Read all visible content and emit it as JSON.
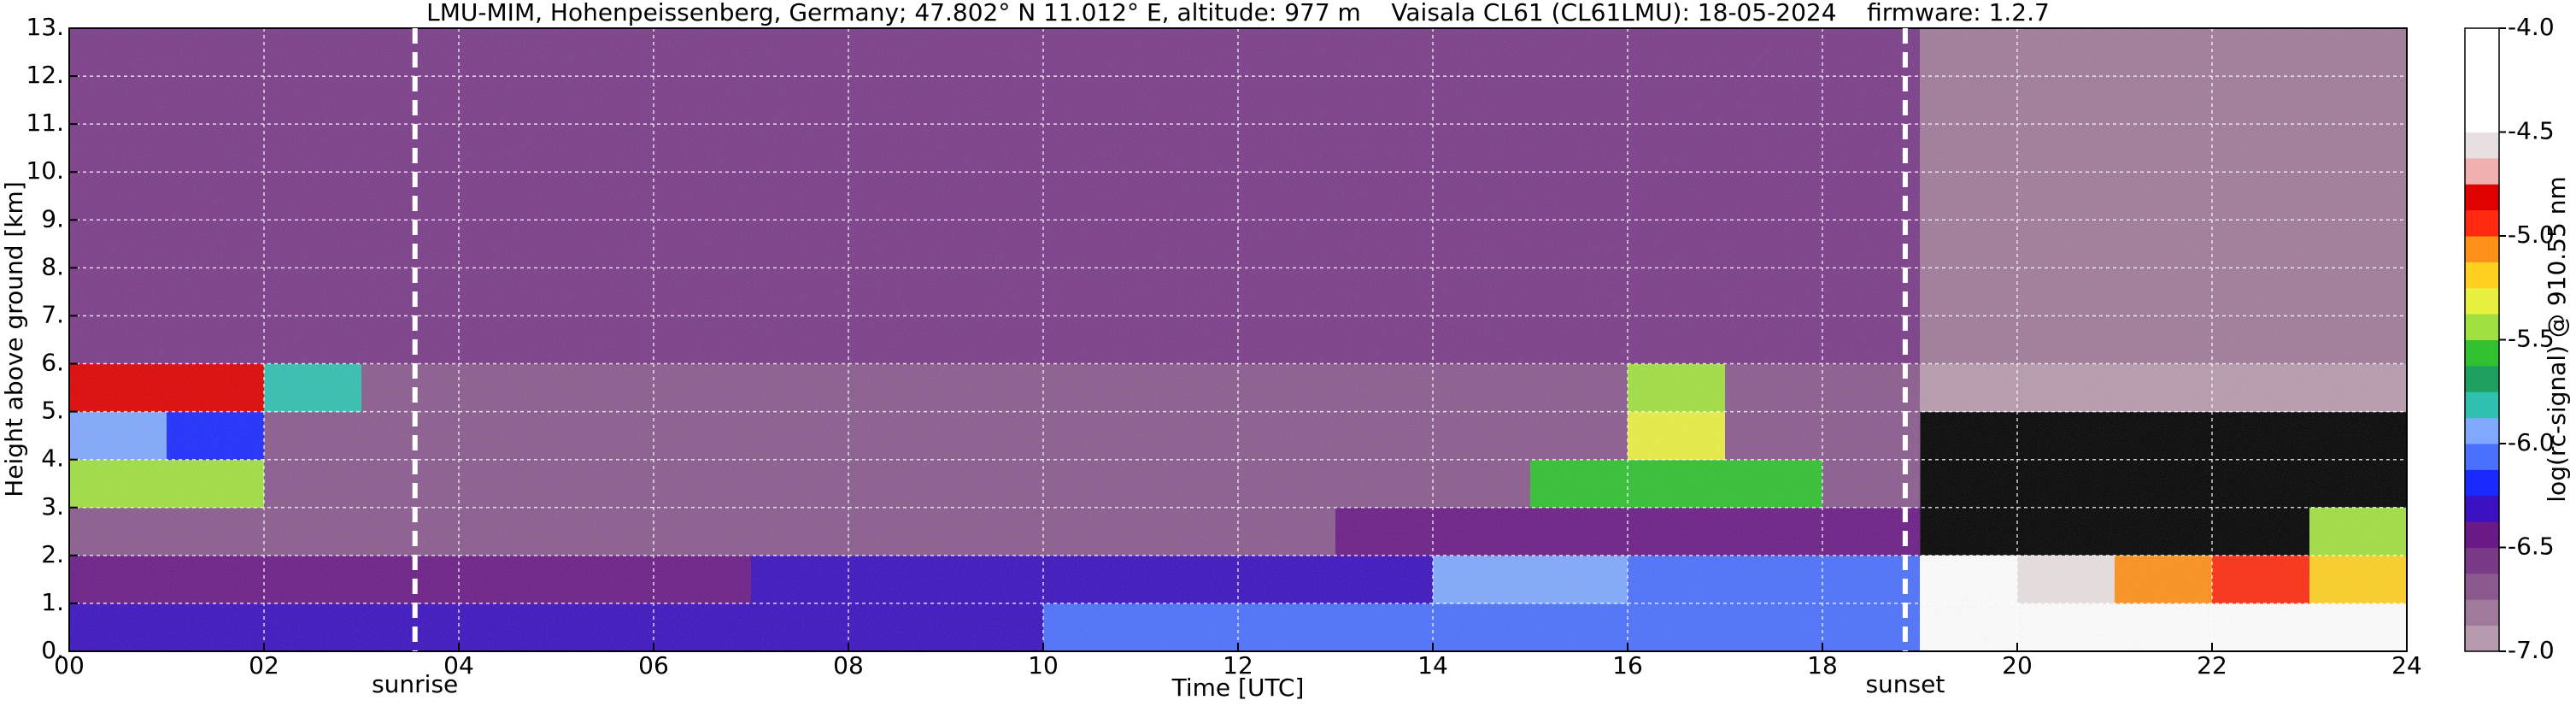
{
  "chart_data": {
    "type": "heatmap",
    "title": "LMU-MIM, Hohenpeissenberg, Germany; 47.802° N 11.012° E, altitude: 977 m    Vaisala CL61 (CL61LMU): 18-05-2024    firmware: 1.2.7",
    "x_label": "Time [UTC]",
    "y_label": "Height above ground [km]",
    "colorbar_label": "log(rc-signal) @ 910.55 nm",
    "xlim": [
      0,
      24
    ],
    "ylim": [
      0,
      13
    ],
    "xticks": [
      {
        "value": 0,
        "label": "00"
      },
      {
        "value": 2,
        "label": "02"
      },
      {
        "value": 4,
        "label": "04"
      },
      {
        "value": 6,
        "label": "06"
      },
      {
        "value": 8,
        "label": "08"
      },
      10,
      12,
      14,
      16,
      18,
      20,
      22,
      24
    ],
    "yticks": [
      {
        "value": 0,
        "label": "0."
      },
      {
        "value": 1,
        "label": "1."
      },
      {
        "value": 2,
        "label": "2."
      },
      {
        "value": 3,
        "label": "3."
      },
      {
        "value": 4,
        "label": "4."
      },
      {
        "value": 5,
        "label": "5."
      },
      {
        "value": 6,
        "label": "6."
      },
      {
        "value": 7,
        "label": "7."
      },
      {
        "value": 8,
        "label": "8."
      },
      {
        "value": 9,
        "label": "9."
      },
      {
        "value": 10,
        "label": "10."
      },
      {
        "value": 11,
        "label": "11."
      },
      {
        "value": 12,
        "label": "12."
      },
      {
        "value": 13,
        "label": "13."
      }
    ],
    "grid": true,
    "annotations": [
      {
        "text": "sunrise",
        "x": 3.55
      },
      {
        "text": "sunset",
        "x": 18.85
      }
    ],
    "zlim": [
      -7,
      -4
    ],
    "zticks": [
      {
        "value": -4,
        "label": "-4.0"
      },
      -4.5,
      {
        "value": -5,
        "label": "-5.0"
      },
      -5.5,
      {
        "value": -6,
        "label": "-6.0"
      },
      -6.5,
      {
        "value": -7,
        "label": "-7.0"
      }
    ],
    "colors": [
      "#b89aae",
      "#a07a9a",
      "#8a5a8e",
      "#7a3a88",
      "#6a1a86",
      "#3a10c0",
      "#1a2aff",
      "#4a70ff",
      "#80a8ff",
      "#30c0b0",
      "#20a060",
      "#30c030",
      "#a0e040",
      "#e8f040",
      "#ffd020",
      "#ff9018",
      "#ff2a10",
      "#e00000",
      "#f0b0b0",
      "#e8e0e0",
      "#ffffff",
      "#ffffff",
      "#ffffff",
      "#ffffff"
    ],
    "x_bins": [
      0,
      1,
      2,
      3,
      4,
      5,
      6,
      7,
      8,
      9,
      10,
      11,
      12,
      13,
      14,
      15,
      16,
      17,
      18,
      19,
      20,
      21,
      22,
      23,
      24
    ],
    "y_bins": [
      0,
      1,
      2,
      3,
      4,
      5,
      6,
      7,
      8,
      9,
      10,
      11,
      12,
      13
    ],
    "z": [
      [
        -6.3,
        -6.3,
        -6.3,
        -6.3,
        -6.3,
        -6.3,
        -6.3,
        -6.3,
        -6.3,
        -6.3,
        -6.1,
        -6.1,
        -6.1,
        -6.1,
        -6.1,
        -6.1,
        -6.1,
        -6.1,
        -6.1,
        -4.3,
        -4.3,
        -4.3,
        -4.3,
        -4.3
      ],
      [
        -6.5,
        -6.5,
        -6.5,
        -6.5,
        -6.5,
        -6.5,
        -6.5,
        -6.3,
        -6.3,
        -6.3,
        -6.3,
        -6.3,
        -6.3,
        -6.3,
        -6.0,
        -6.0,
        -6.1,
        -6.1,
        -6.1,
        -4.5,
        -4.6,
        -5.1,
        -5.0,
        -5.2
      ],
      [
        -6.7,
        -6.7,
        -6.7,
        -6.7,
        -6.7,
        -6.7,
        -6.7,
        -6.7,
        -6.7,
        -6.7,
        -6.7,
        -6.7,
        -6.7,
        -6.4,
        -6.4,
        -6.4,
        -6.4,
        -6.4,
        -6.4,
        null,
        null,
        null,
        null,
        -5.4
      ],
      [
        -5.4,
        -5.4,
        -6.7,
        -6.7,
        -6.7,
        -6.7,
        -6.7,
        -6.7,
        -6.7,
        -6.7,
        -6.7,
        -6.7,
        -6.7,
        -6.7,
        -6.7,
        -5.6,
        -5.6,
        -5.6,
        -6.7,
        null,
        null,
        null,
        null,
        null
      ],
      [
        -5.9,
        -6.2,
        -6.7,
        -6.7,
        -6.7,
        -6.7,
        -6.7,
        -6.7,
        -6.7,
        -6.7,
        -6.7,
        -6.7,
        -6.7,
        -6.7,
        -6.7,
        -6.7,
        -5.3,
        -6.7,
        -6.7,
        null,
        null,
        null,
        null,
        null
      ],
      [
        -4.8,
        -4.8,
        -5.8,
        -6.7,
        -6.7,
        -6.7,
        -6.7,
        -6.7,
        -6.7,
        -6.7,
        -6.7,
        -6.7,
        -6.7,
        -6.7,
        -6.7,
        -6.7,
        -5.5,
        -6.7,
        -6.7,
        -6.9,
        -6.9,
        -6.9,
        -6.9,
        -6.9
      ],
      [
        -6.6,
        -6.6,
        -6.6,
        -6.6,
        -6.6,
        -6.6,
        -6.6,
        -6.6,
        -6.6,
        -6.6,
        -6.6,
        -6.6,
        -6.6,
        -6.6,
        -6.6,
        -6.6,
        -6.6,
        -6.6,
        -6.6,
        -6.8,
        -6.8,
        -6.8,
        -6.8,
        -6.8
      ],
      [
        -6.6,
        -6.6,
        -6.6,
        -6.6,
        -6.6,
        -6.6,
        -6.6,
        -6.6,
        -6.6,
        -6.6,
        -6.6,
        -6.6,
        -6.6,
        -6.6,
        -6.6,
        -6.6,
        -6.6,
        -6.6,
        -6.6,
        -6.8,
        -6.8,
        -6.8,
        -6.8,
        -6.8
      ],
      [
        -6.6,
        -6.6,
        -6.6,
        -6.6,
        -6.6,
        -6.6,
        -6.6,
        -6.6,
        -6.6,
        -6.6,
        -6.6,
        -6.6,
        -6.6,
        -6.6,
        -6.6,
        -6.6,
        -6.6,
        -6.6,
        -6.6,
        -6.8,
        -6.8,
        -6.8,
        -6.8,
        -6.8
      ],
      [
        -6.6,
        -6.6,
        -6.6,
        -6.6,
        -6.6,
        -6.6,
        -6.6,
        -6.6,
        -6.6,
        -6.6,
        -6.6,
        -6.6,
        -6.6,
        -6.6,
        -6.6,
        -6.6,
        -6.6,
        -6.6,
        -6.6,
        -6.8,
        -6.8,
        -6.8,
        -6.8,
        -6.8
      ],
      [
        -6.6,
        -6.6,
        -6.6,
        -6.6,
        -6.6,
        -6.6,
        -6.6,
        -6.6,
        -6.6,
        -6.6,
        -6.6,
        -6.6,
        -6.6,
        -6.6,
        -6.6,
        -6.6,
        -6.6,
        -6.6,
        -6.6,
        -6.8,
        -6.8,
        -6.8,
        -6.8,
        -6.8
      ],
      [
        -6.6,
        -6.6,
        -6.6,
        -6.6,
        -6.6,
        -6.6,
        -6.6,
        -6.6,
        -6.6,
        -6.6,
        -6.6,
        -6.6,
        -6.6,
        -6.6,
        -6.6,
        -6.6,
        -6.6,
        -6.6,
        -6.6,
        -6.8,
        -6.8,
        -6.8,
        -6.8,
        -6.8
      ],
      [
        -6.6,
        -6.6,
        -6.6,
        -6.6,
        -6.6,
        -6.6,
        -6.6,
        -6.6,
        -6.6,
        -6.6,
        -6.6,
        -6.6,
        -6.6,
        -6.6,
        -6.6,
        -6.6,
        -6.6,
        -6.6,
        -6.6,
        -6.8,
        -6.8,
        -6.8,
        -6.8,
        -6.8
      ]
    ]
  }
}
